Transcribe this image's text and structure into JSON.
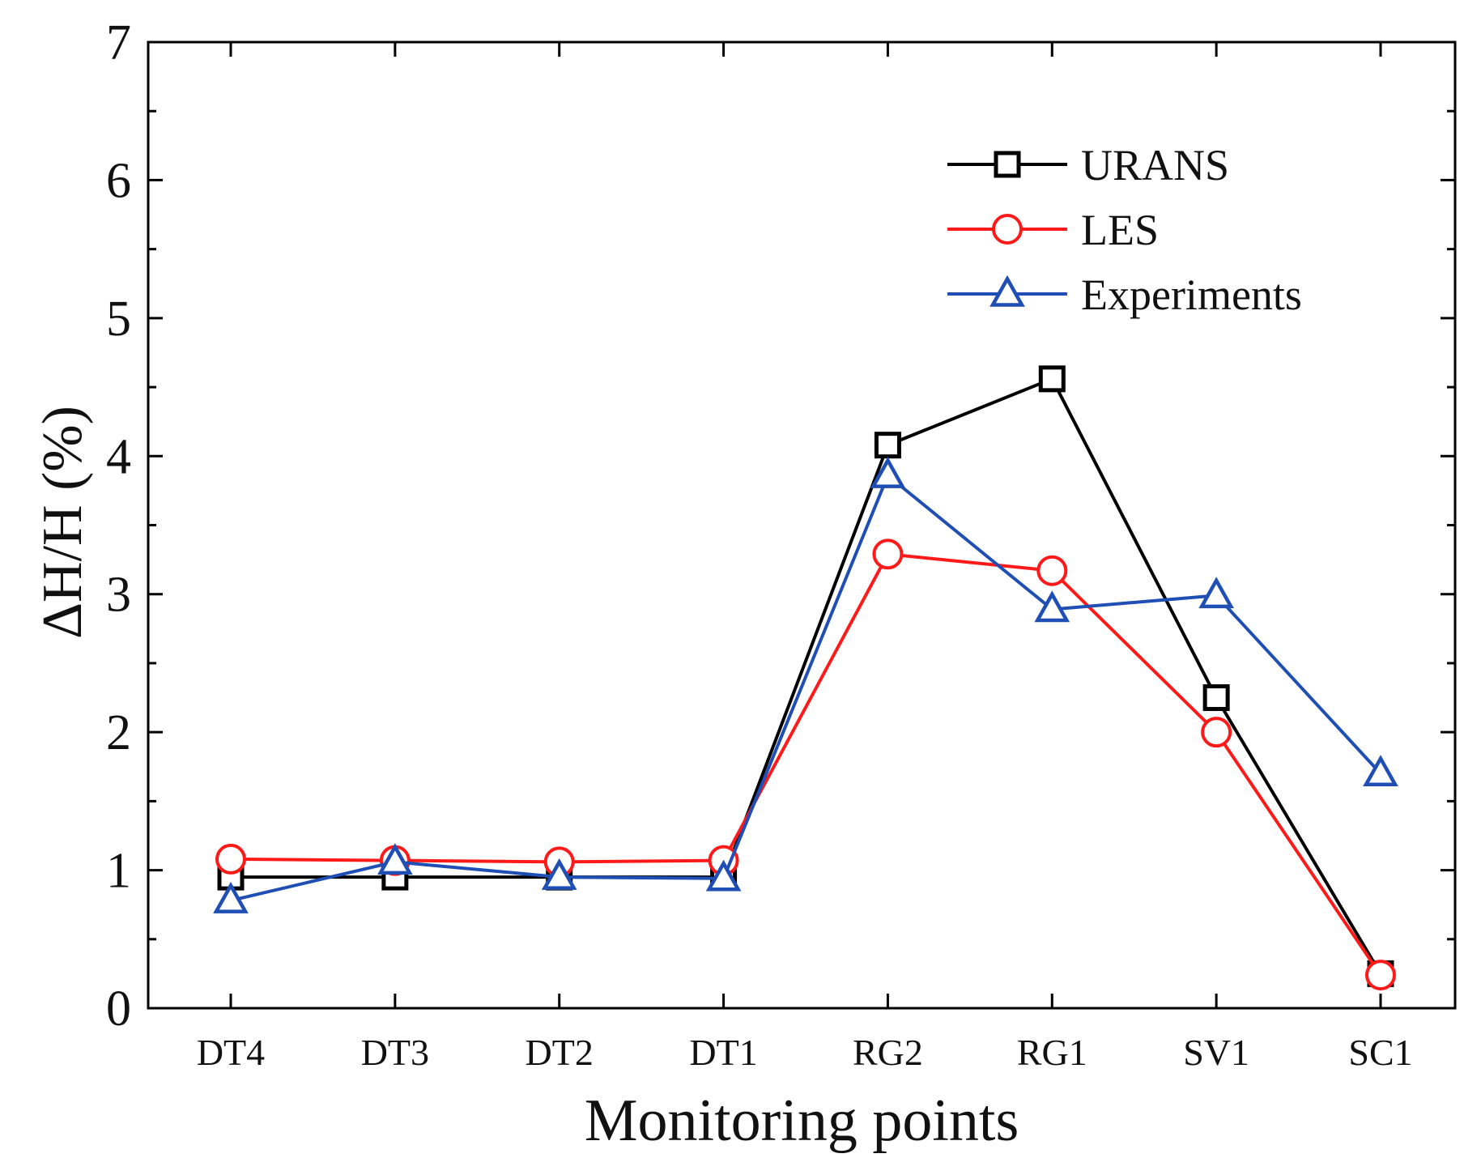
{
  "chart_data": {
    "type": "line",
    "title": "",
    "xlabel": "Monitoring points",
    "ylabel": "ΔH/H (%)",
    "categories": [
      "DT4",
      "DT3",
      "DT2",
      "DT1",
      "RG2",
      "RG1",
      "SV1",
      "SC1"
    ],
    "ylim": [
      0,
      7
    ],
    "yticks": [
      "0",
      "1",
      "2",
      "3",
      "4",
      "5",
      "6",
      "7"
    ],
    "legend_position": "top-right",
    "series": [
      {
        "name": "URANS",
        "color": "#000000",
        "marker": "square",
        "values": [
          0.95,
          0.95,
          0.95,
          0.95,
          4.08,
          4.56,
          2.25,
          0.25
        ]
      },
      {
        "name": "LES",
        "color": "#ff1a1a",
        "marker": "circle",
        "values": [
          1.08,
          1.07,
          1.06,
          1.07,
          3.29,
          3.17,
          2.0,
          0.24
        ]
      },
      {
        "name": "Experiments",
        "color": "#1f4fb4",
        "marker": "triangle",
        "values": [
          0.78,
          1.06,
          0.95,
          0.94,
          3.86,
          2.89,
          2.99,
          1.7
        ]
      }
    ]
  }
}
